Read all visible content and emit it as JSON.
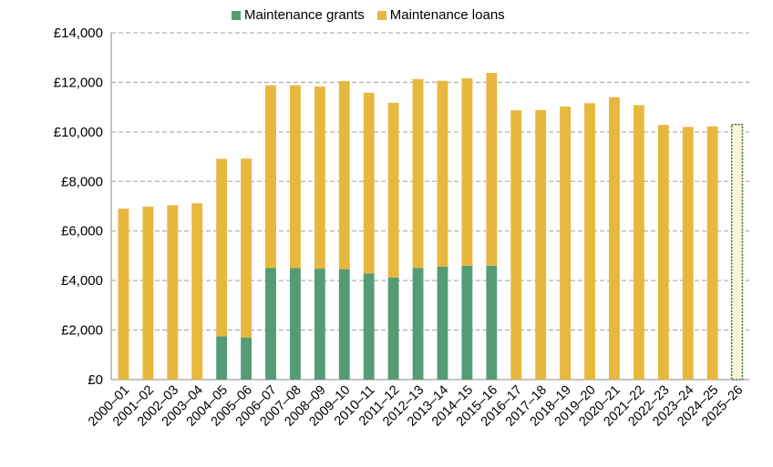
{
  "chart_data": {
    "type": "bar",
    "stacked": true,
    "ylim": [
      0,
      14000
    ],
    "yticks": [
      0,
      2000,
      4000,
      6000,
      8000,
      10000,
      12000,
      14000
    ],
    "ytick_labels": [
      "£0",
      "£2,000",
      "£4,000",
      "£6,000",
      "£8,000",
      "£10,000",
      "£12,000",
      "£14,000"
    ],
    "grid": "horizontal dashed",
    "legend_position": "top",
    "categories": [
      "2000–01",
      "2001–02",
      "2002–03",
      "2003–04",
      "2004–05",
      "2005–06",
      "2006–07",
      "2007–08",
      "2008–09",
      "2009–10",
      "2010–11",
      "2011–12",
      "2012–13",
      "2013–14",
      "2014–15",
      "2015–16",
      "2016–17",
      "2017–18",
      "2018–19",
      "2019–20",
      "2020–21",
      "2021–22",
      "2022–23",
      "2023–24",
      "2024–25",
      "2025–26"
    ],
    "series": [
      {
        "name": "Maintenance grants",
        "color": "#559c76",
        "values": [
          0,
          0,
          0,
          0,
          1750,
          1700,
          4500,
          4500,
          4480,
          4460,
          4280,
          4120,
          4500,
          4560,
          4600,
          4600,
          0,
          0,
          0,
          0,
          0,
          0,
          0,
          0,
          0,
          0
        ]
      },
      {
        "name": "Maintenance loans",
        "color": "#e8b73e",
        "values": [
          6900,
          6980,
          7040,
          7120,
          7160,
          7220,
          7380,
          7380,
          7350,
          7590,
          7300,
          7050,
          7630,
          7500,
          7560,
          7780,
          10870,
          10880,
          11020,
          11160,
          11400,
          11080,
          10280,
          10200,
          10220,
          10300
        ]
      }
    ],
    "projected_category": "2025–26",
    "projected_border_color": "#2e6b3e"
  }
}
